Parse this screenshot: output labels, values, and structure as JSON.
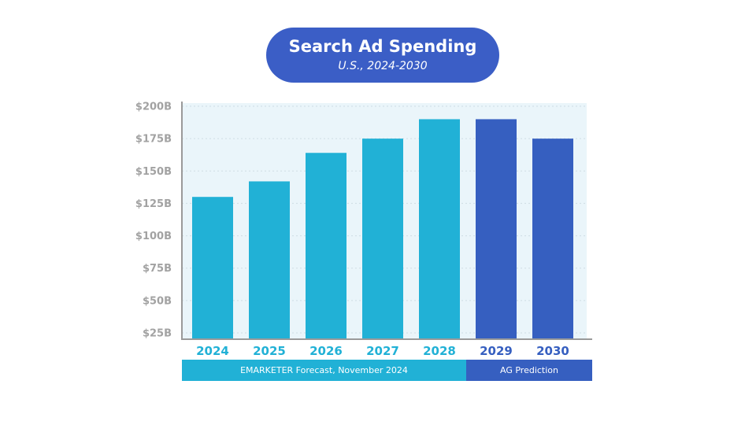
{
  "header": {
    "title": "Search Ad Spending",
    "subtitle": "U.S., 2024-2030"
  },
  "colors": {
    "forecast": "#21b1d6",
    "prediction": "#365fc0",
    "plot_background": "#eaf5fa",
    "gridline": "#cfdde4",
    "tick_label": "#a2a2a2"
  },
  "chart_data": {
    "type": "bar",
    "title": "Search Ad Spending",
    "subtitle": "U.S., 2024-2030",
    "categories": [
      "2024",
      "2025",
      "2026",
      "2027",
      "2028",
      "2029",
      "2030"
    ],
    "values": [
      130,
      142,
      164,
      175,
      190,
      190,
      175
    ],
    "unit": "$B",
    "ylim": [
      25,
      200
    ],
    "yticks": [
      25,
      50,
      75,
      100,
      125,
      150,
      175,
      200
    ],
    "ytick_labels": [
      "$25B",
      "$50B",
      "$75B",
      "$100B",
      "$125B",
      "$150B",
      "$175B",
      "$200B"
    ],
    "grid": true,
    "groups": [
      {
        "label": "EMARKETER Forecast, November 2024",
        "categories": [
          "2024",
          "2025",
          "2026",
          "2027",
          "2028"
        ],
        "color": "#21b1d6"
      },
      {
        "label": "AG Prediction",
        "categories": [
          "2029",
          "2030"
        ],
        "color": "#365fc0"
      }
    ]
  }
}
